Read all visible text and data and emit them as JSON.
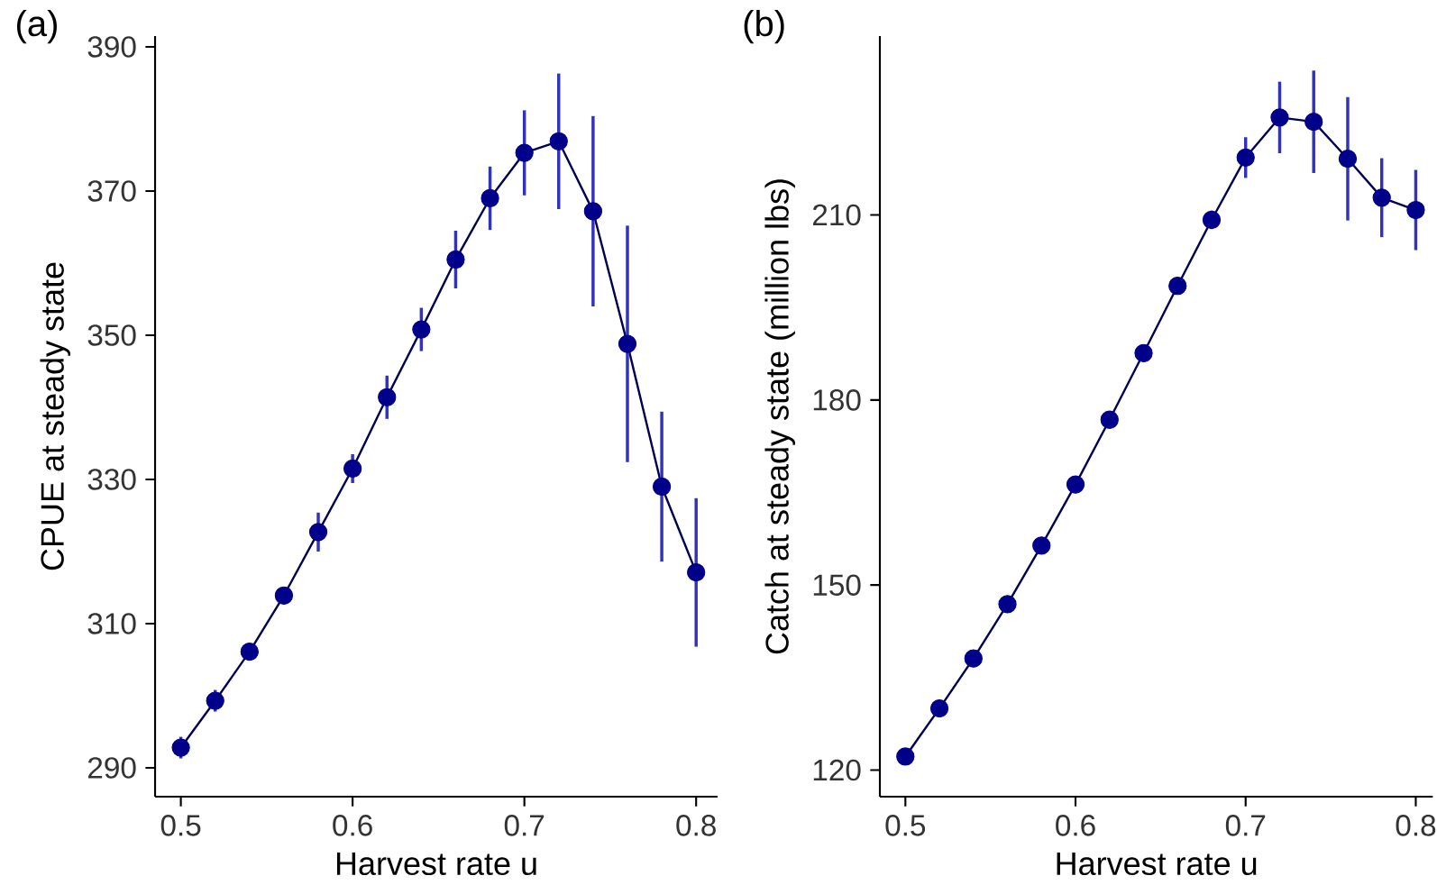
{
  "chart_data": [
    {
      "type": "line",
      "xlabel": "Harvest rate u",
      "ylabel": "CPUE at steady state",
      "annotations": [
        "(a)"
      ],
      "marker": "circle",
      "line_style": "solid",
      "grid": false,
      "x": [
        0.5,
        0.52,
        0.54,
        0.56,
        0.58,
        0.6,
        0.62,
        0.64,
        0.66,
        0.68,
        0.7,
        0.72,
        0.74,
        0.76,
        0.78,
        0.8
      ],
      "series": [
        {
          "color": "#00008b",
          "values": [
            292.8,
            299.3,
            306.1,
            313.9,
            322.7,
            331.5,
            341.4,
            350.8,
            360.5,
            369.0,
            375.3,
            376.9,
            367.2,
            348.8,
            329.0,
            317.1
          ],
          "errors": [
            1.5,
            1.5,
            1,
            1,
            2.7,
            2,
            3,
            3,
            4,
            4.4,
            5.9,
            9.4,
            13.2,
            16.4,
            10.4,
            10.3
          ]
        }
      ],
      "xlim": [
        0.485,
        0.8125
      ],
      "ylim": [
        286,
        391.5
      ],
      "xticks": [
        0.5,
        0.6,
        0.7,
        0.8
      ],
      "yticks": [
        290,
        310,
        330,
        350,
        370,
        390
      ]
    },
    {
      "type": "line",
      "xlabel": "Harvest rate u",
      "ylabel": "Catch at steady state (million lbs)",
      "annotations": [
        "(b)"
      ],
      "marker": "circle",
      "line_style": "solid",
      "grid": false,
      "x": [
        0.5,
        0.52,
        0.54,
        0.56,
        0.58,
        0.6,
        0.62,
        0.64,
        0.66,
        0.68,
        0.7,
        0.72,
        0.74,
        0.76,
        0.78,
        0.8
      ],
      "series": [
        {
          "color": "#00008b",
          "values": [
            122.2,
            130.0,
            138.1,
            146.9,
            156.4,
            166.3,
            176.8,
            187.6,
            198.5,
            209.2,
            219.3,
            225.8,
            225.1,
            219.1,
            212.8,
            210.8
          ],
          "errors": [
            null,
            null,
            null,
            null,
            null,
            null,
            null,
            null,
            1,
            1.5,
            3.3,
            5.8,
            8.3,
            10,
            6.4,
            6.5
          ]
        }
      ],
      "xlim": [
        0.485,
        0.81
      ],
      "ylim": [
        115.7,
        239
      ],
      "xticks": [
        0.5,
        0.6,
        0.7,
        0.8
      ],
      "yticks": [
        120,
        150,
        180,
        210
      ]
    }
  ]
}
